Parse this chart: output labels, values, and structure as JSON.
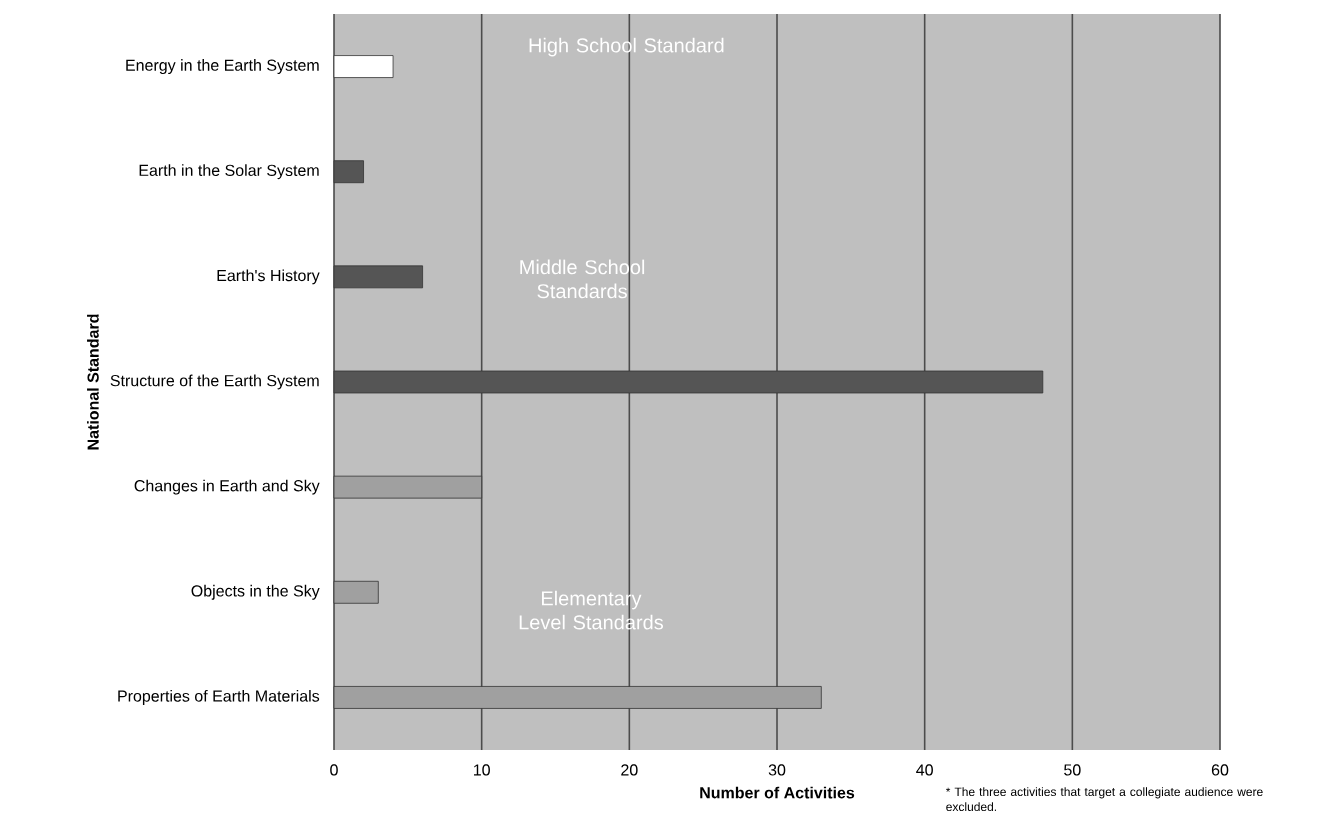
{
  "chart_data": {
    "type": "bar",
    "orientation": "horizontal",
    "categories": [
      "Energy in the Earth System",
      "Earth in the Solar System",
      "Earth's History",
      "Structure of the Earth System",
      "Changes in Earth and Sky",
      "Objects in the Sky",
      "Properties of Earth Materials"
    ],
    "values": [
      4,
      2,
      6,
      48,
      10,
      3,
      33
    ],
    "colors": [
      "#ffffff",
      "#555555",
      "#555555",
      "#555555",
      "#a0a0a0",
      "#a0a0a0",
      "#a0a0a0"
    ],
    "xlabel": "Number of Activities",
    "ylabel": "National Standard",
    "xlim": [
      0,
      60
    ],
    "xticks": [
      0,
      10,
      20,
      30,
      40,
      50,
      60
    ],
    "grid": "x",
    "annotations": [
      "High School Standard",
      "Middle School Standards",
      "Elementary Level Standards",
      "* The three activities that target a collegiate audience were excluded."
    ]
  }
}
